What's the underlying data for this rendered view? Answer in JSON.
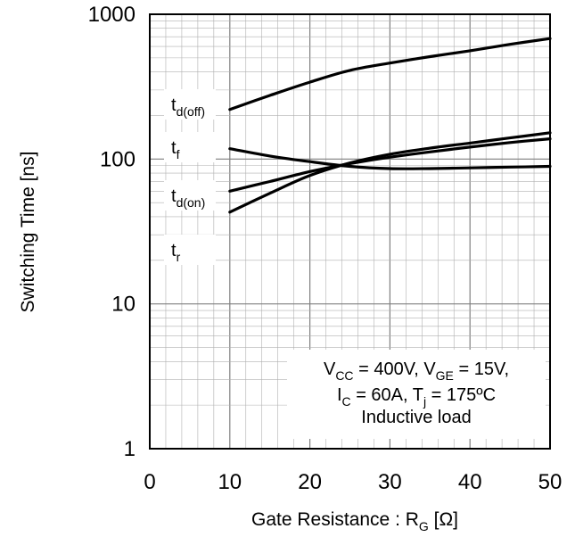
{
  "chart_data": {
    "type": "line",
    "xlabel": "Gate Resistance : R",
    "xlabel_sub": "G",
    "xlabel_unit": " [Ω]",
    "ylabel": "Switching Time [ns]",
    "xlim": [
      0,
      50
    ],
    "ylim": [
      1,
      1000
    ],
    "y_scale": "log",
    "grid": true,
    "x_ticks": [
      0,
      10,
      20,
      30,
      40,
      50
    ],
    "x_tick_labels": [
      "0",
      "10",
      "20",
      "30",
      "40",
      "50"
    ],
    "y_ticks": [
      1,
      10,
      100,
      1000
    ],
    "y_tick_labels": [
      "1",
      "10",
      "100",
      "1000"
    ],
    "series": [
      {
        "name": "t_d(off)",
        "label_main": "t",
        "label_sub": "d(off)",
        "x": [
          10,
          15,
          20,
          25,
          30,
          35,
          40,
          45,
          50
        ],
        "y": [
          220,
          275,
          340,
          410,
          460,
          510,
          560,
          620,
          680
        ]
      },
      {
        "name": "t_f",
        "label_main": "t",
        "label_sub": "f",
        "x": [
          10,
          15,
          20,
          25,
          30,
          35,
          40,
          45,
          50
        ],
        "y": [
          118,
          105,
          96,
          89,
          86,
          86,
          87,
          88,
          89
        ]
      },
      {
        "name": "t_d(on)",
        "label_main": "t",
        "label_sub": "d(on)",
        "x": [
          10,
          15,
          20,
          25,
          30,
          35,
          40,
          45,
          50
        ],
        "y": [
          60,
          70,
          82,
          93,
          103,
          112,
          121,
          130,
          138
        ]
      },
      {
        "name": "t_r",
        "label_main": "t",
        "label_sub": "r",
        "x": [
          10,
          15,
          20,
          25,
          30,
          35,
          40,
          45,
          50
        ],
        "y": [
          43,
          58,
          77,
          94,
          108,
          119,
          129,
          140,
          152
        ]
      }
    ],
    "annotation": {
      "line1": {
        "p1": "V",
        "s1": "CC",
        "p2": " = 400V, V",
        "s2": "GE",
        "p3": " = 15V,"
      },
      "line2": {
        "p1": "I",
        "s1": "C",
        "p2": " = 60A, T",
        "s2": "j",
        "p3": " = 175ºC"
      },
      "line3": "Inductive load"
    },
    "colors": {
      "line": "#000000",
      "major_grid": "#7f7f7f",
      "minor_grid": "#b0b0b0",
      "background": "#ffffff"
    }
  }
}
